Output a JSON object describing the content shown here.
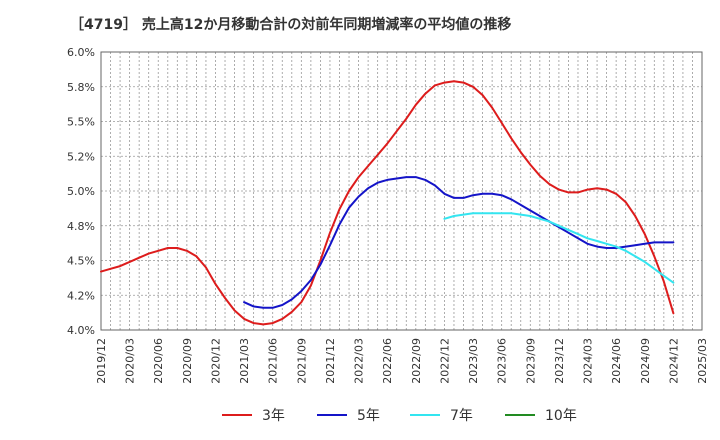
{
  "chart_data": {
    "type": "line",
    "title": "［4719］ 売上高12か月移動合計の対前年同期増減率の平均値の推移",
    "xlabel": "",
    "ylabel": "",
    "ylim": [
      4.0,
      6.0
    ],
    "y_ticks": [
      "4.0%",
      "4.2%",
      "4.5%",
      "4.8%",
      "5.0%",
      "5.2%",
      "5.5%",
      "5.8%",
      "6.0%"
    ],
    "x_ticks": [
      "2019/12",
      "2020/03",
      "2020/06",
      "2020/09",
      "2020/12",
      "2021/03",
      "2021/06",
      "2021/09",
      "2021/12",
      "2022/03",
      "2022/06",
      "2022/09",
      "2022/12",
      "2023/03",
      "2023/06",
      "2023/09",
      "2023/12",
      "2024/03",
      "2024/06",
      "2024/09",
      "2024/12",
      "2025/03"
    ],
    "x_start": "2019/12",
    "x_end": "2025/03",
    "grid": true,
    "legend_position": "bottom",
    "series": [
      {
        "name": "3年",
        "color": "#dd1c1c",
        "points": [
          [
            "2019/12",
            4.42
          ],
          [
            "2020/01",
            4.44
          ],
          [
            "2020/02",
            4.46
          ],
          [
            "2020/03",
            4.49
          ],
          [
            "2020/04",
            4.52
          ],
          [
            "2020/05",
            4.55
          ],
          [
            "2020/06",
            4.57
          ],
          [
            "2020/07",
            4.59
          ],
          [
            "2020/08",
            4.59
          ],
          [
            "2020/09",
            4.57
          ],
          [
            "2020/10",
            4.53
          ],
          [
            "2020/11",
            4.45
          ],
          [
            "2020/12",
            4.33
          ],
          [
            "2021/01",
            4.23
          ],
          [
            "2021/02",
            4.14
          ],
          [
            "2021/03",
            4.08
          ],
          [
            "2021/04",
            4.05
          ],
          [
            "2021/05",
            4.04
          ],
          [
            "2021/06",
            4.05
          ],
          [
            "2021/07",
            4.08
          ],
          [
            "2021/08",
            4.13
          ],
          [
            "2021/09",
            4.2
          ],
          [
            "2021/10",
            4.32
          ],
          [
            "2021/11",
            4.5
          ],
          [
            "2021/12",
            4.7
          ],
          [
            "2022/01",
            4.87
          ],
          [
            "2022/02",
            5.0
          ],
          [
            "2022/03",
            5.1
          ],
          [
            "2022/04",
            5.18
          ],
          [
            "2022/05",
            5.26
          ],
          [
            "2022/06",
            5.34
          ],
          [
            "2022/07",
            5.43
          ],
          [
            "2022/08",
            5.52
          ],
          [
            "2022/09",
            5.62
          ],
          [
            "2022/10",
            5.7
          ],
          [
            "2022/11",
            5.76
          ],
          [
            "2022/12",
            5.78
          ],
          [
            "2023/01",
            5.79
          ],
          [
            "2023/02",
            5.78
          ],
          [
            "2023/03",
            5.75
          ],
          [
            "2023/04",
            5.69
          ],
          [
            "2023/05",
            5.6
          ],
          [
            "2023/06",
            5.49
          ],
          [
            "2023/07",
            5.38
          ],
          [
            "2023/08",
            5.28
          ],
          [
            "2023/09",
            5.19
          ],
          [
            "2023/10",
            5.11
          ],
          [
            "2023/11",
            5.05
          ],
          [
            "2023/12",
            5.01
          ],
          [
            "2024/01",
            4.99
          ],
          [
            "2024/02",
            4.99
          ],
          [
            "2024/03",
            5.01
          ],
          [
            "2024/04",
            5.02
          ],
          [
            "2024/05",
            5.01
          ],
          [
            "2024/06",
            4.98
          ],
          [
            "2024/07",
            4.92
          ],
          [
            "2024/08",
            4.82
          ],
          [
            "2024/09",
            4.69
          ],
          [
            "2024/10",
            4.53
          ],
          [
            "2024/11",
            4.35
          ],
          [
            "2024/12",
            4.12
          ]
        ]
      },
      {
        "name": "5年",
        "color": "#1414c8",
        "points": [
          [
            "2021/03",
            4.2
          ],
          [
            "2021/04",
            4.17
          ],
          [
            "2021/05",
            4.16
          ],
          [
            "2021/06",
            4.16
          ],
          [
            "2021/07",
            4.18
          ],
          [
            "2021/08",
            4.22
          ],
          [
            "2021/09",
            4.28
          ],
          [
            "2021/10",
            4.36
          ],
          [
            "2021/11",
            4.47
          ],
          [
            "2021/12",
            4.61
          ],
          [
            "2022/01",
            4.76
          ],
          [
            "2022/02",
            4.88
          ],
          [
            "2022/03",
            4.96
          ],
          [
            "2022/04",
            5.02
          ],
          [
            "2022/05",
            5.06
          ],
          [
            "2022/06",
            5.08
          ],
          [
            "2022/07",
            5.09
          ],
          [
            "2022/08",
            5.1
          ],
          [
            "2022/09",
            5.1
          ],
          [
            "2022/10",
            5.08
          ],
          [
            "2022/11",
            5.04
          ],
          [
            "2022/12",
            4.98
          ],
          [
            "2023/01",
            4.95
          ],
          [
            "2023/02",
            4.95
          ],
          [
            "2023/03",
            4.97
          ],
          [
            "2023/04",
            4.98
          ],
          [
            "2023/05",
            4.98
          ],
          [
            "2023/06",
            4.97
          ],
          [
            "2023/07",
            4.94
          ],
          [
            "2023/08",
            4.9
          ],
          [
            "2023/09",
            4.86
          ],
          [
            "2023/10",
            4.82
          ],
          [
            "2023/11",
            4.78
          ],
          [
            "2023/12",
            4.74
          ],
          [
            "2024/01",
            4.7
          ],
          [
            "2024/02",
            4.66
          ],
          [
            "2024/03",
            4.62
          ],
          [
            "2024/04",
            4.6
          ],
          [
            "2024/05",
            4.59
          ],
          [
            "2024/06",
            4.59
          ],
          [
            "2024/07",
            4.6
          ],
          [
            "2024/08",
            4.61
          ],
          [
            "2024/09",
            4.62
          ],
          [
            "2024/10",
            4.63
          ],
          [
            "2024/11",
            4.63
          ],
          [
            "2024/12",
            4.63
          ]
        ]
      },
      {
        "name": "7年",
        "color": "#33e5f0",
        "points": [
          [
            "2022/12",
            4.8
          ],
          [
            "2023/01",
            4.82
          ],
          [
            "2023/02",
            4.83
          ],
          [
            "2023/03",
            4.84
          ],
          [
            "2023/04",
            4.84
          ],
          [
            "2023/05",
            4.84
          ],
          [
            "2023/06",
            4.84
          ],
          [
            "2023/07",
            4.84
          ],
          [
            "2023/08",
            4.83
          ],
          [
            "2023/09",
            4.82
          ],
          [
            "2023/10",
            4.8
          ],
          [
            "2023/11",
            4.78
          ],
          [
            "2023/12",
            4.75
          ],
          [
            "2024/01",
            4.72
          ],
          [
            "2024/02",
            4.69
          ],
          [
            "2024/03",
            4.66
          ],
          [
            "2024/04",
            4.64
          ],
          [
            "2024/05",
            4.62
          ],
          [
            "2024/06",
            4.6
          ],
          [
            "2024/07",
            4.57
          ],
          [
            "2024/08",
            4.53
          ],
          [
            "2024/09",
            4.49
          ],
          [
            "2024/10",
            4.44
          ],
          [
            "2024/11",
            4.39
          ],
          [
            "2024/12",
            4.34
          ]
        ]
      },
      {
        "name": "10年",
        "color": "#228b22",
        "points": []
      }
    ]
  }
}
